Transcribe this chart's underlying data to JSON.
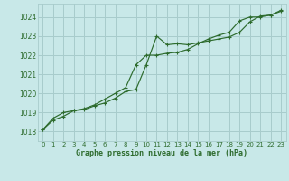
{
  "title": "Graphe pression niveau de la mer (hPa)",
  "bg_color": "#c8e8e8",
  "grid_color": "#a8cccc",
  "line_color": "#2d6b2d",
  "xlim": [
    -0.5,
    23.5
  ],
  "ylim": [
    1017.5,
    1024.7
  ],
  "yticks": [
    1018,
    1019,
    1020,
    1021,
    1022,
    1023,
    1024
  ],
  "xticks": [
    0,
    1,
    2,
    3,
    4,
    5,
    6,
    7,
    8,
    9,
    10,
    11,
    12,
    13,
    14,
    15,
    16,
    17,
    18,
    19,
    20,
    21,
    22,
    23
  ],
  "x": [
    0,
    1,
    2,
    3,
    4,
    5,
    6,
    7,
    8,
    9,
    10,
    11,
    12,
    13,
    14,
    15,
    16,
    17,
    18,
    19,
    20,
    21,
    22,
    23
  ],
  "y_wavy": [
    1018.1,
    1018.6,
    1018.8,
    1019.1,
    1019.15,
    1019.35,
    1019.5,
    1019.75,
    1020.1,
    1020.2,
    1021.5,
    1023.0,
    1022.55,
    1022.6,
    1022.55,
    1022.65,
    1022.75,
    1022.85,
    1022.95,
    1023.2,
    1023.75,
    1024.05,
    1024.1,
    1024.35
  ],
  "y_smooth": [
    1018.1,
    1018.7,
    1019.0,
    1019.1,
    1019.2,
    1019.4,
    1019.7,
    1020.0,
    1020.3,
    1021.5,
    1022.0,
    1022.0,
    1022.1,
    1022.15,
    1022.3,
    1022.6,
    1022.85,
    1023.05,
    1023.2,
    1023.8,
    1024.0,
    1024.0,
    1024.1,
    1024.3
  ]
}
